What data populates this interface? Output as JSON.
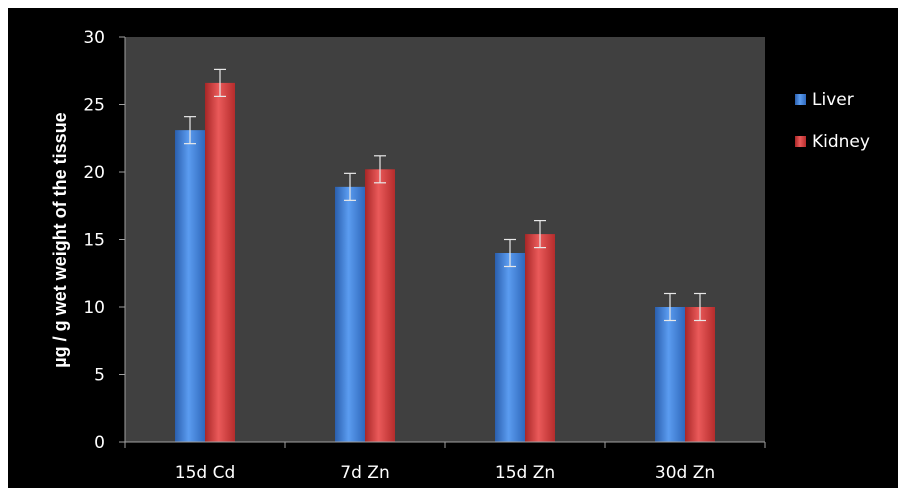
{
  "chart_data": {
    "type": "bar",
    "title": "",
    "xlabel": "",
    "ylabel": "µg / g wet weight of the tissue",
    "ylim": [
      0,
      30
    ],
    "yticks": [
      0,
      5,
      10,
      15,
      20,
      25,
      30
    ],
    "grid": false,
    "legend_position": "right",
    "categories": [
      "15d Cd",
      "7d Zn",
      "15d Zn",
      "30d Zn"
    ],
    "series": [
      {
        "name": "Liver",
        "color": "#3f7fd6",
        "values": [
          23.1,
          18.9,
          14.0,
          10.0
        ],
        "errors": [
          1.0,
          1.0,
          1.0,
          1.0
        ]
      },
      {
        "name": "Kidney",
        "color": "#d23a3a",
        "values": [
          26.6,
          20.2,
          15.4,
          10.0
        ],
        "errors": [
          1.0,
          1.0,
          1.0,
          1.0
        ]
      }
    ]
  }
}
